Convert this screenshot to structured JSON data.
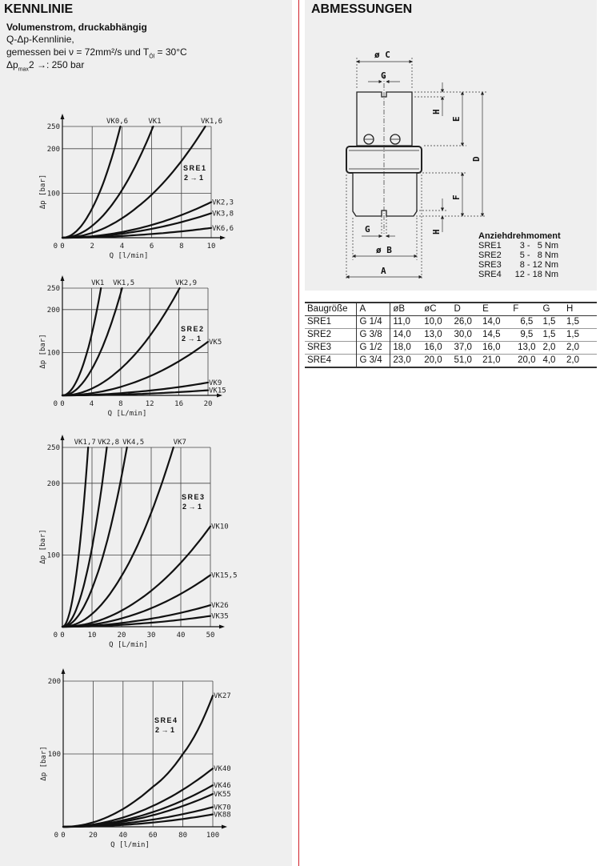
{
  "left": {
    "heading": "KENNLINIE",
    "subtitle": "Volumenstrom, druckabhängig",
    "line1": "Q-Δp-Kennlinie,",
    "line2_pre": "gemessen bei ν = 72mm²/s und T",
    "line2_sub": "Öl",
    "line2_post": " = 30°C",
    "line3_pre": "Δp",
    "line3_sub": "max",
    "line3_post": "2  →: 250 bar"
  },
  "right": {
    "heading": "ABMESSUNGEN",
    "drawing_labels": {
      "c": "ø C",
      "g_top": "G",
      "h_top": "H",
      "e": "E",
      "d": "D",
      "f": "F",
      "h_bottom": "H",
      "g_bottom": "G",
      "b": "ø B",
      "a": "A"
    },
    "torque": {
      "title": "Anziehdrehmoment",
      "rows": [
        {
          "size": "SRE1",
          "value": "3 -   5 Nm"
        },
        {
          "size": "SRE2",
          "value": "5 -   8 Nm"
        },
        {
          "size": "SRE3",
          "value": "8 - 12 Nm"
        },
        {
          "size": "SRE4",
          "value": "12 - 18 Nm"
        }
      ]
    },
    "table": {
      "headers": [
        "Baugröße",
        "A",
        "øB",
        "øC",
        "D",
        "E",
        "F",
        "G",
        "H"
      ],
      "rows": [
        [
          "SRE1",
          "G 1/4",
          "11,0",
          "10,0",
          "26,0",
          "14,0",
          "6,5",
          "1,5",
          "1,5"
        ],
        [
          "SRE2",
          "G 3/8",
          "14,0",
          "13,0",
          "30,0",
          "14,5",
          "9,5",
          "1,5",
          "1,5"
        ],
        [
          "SRE3",
          "G 1/2",
          "18,0",
          "16,0",
          "37,0",
          "16,0",
          "13,0",
          "2,0",
          "2,0"
        ],
        [
          "SRE4",
          "G 3/4",
          "23,0",
          "20,0",
          "51,0",
          "21,0",
          "20,0",
          "4,0",
          "2,0"
        ]
      ]
    }
  },
  "chart_data": [
    {
      "type": "line",
      "title": "SRE1",
      "flow": "2 → 1",
      "xlabel": "Q [l/min]",
      "ylabel": "Δp [bar]",
      "xlim": [
        0,
        10
      ],
      "ylim": [
        0,
        250
      ],
      "xticks": [
        0,
        2,
        4,
        6,
        8,
        10
      ],
      "yticks": [
        100,
        200,
        250
      ],
      "grid": true,
      "series": [
        {
          "name": "VK0,6",
          "points": [
            [
              0,
              0
            ],
            [
              2,
              66
            ],
            [
              3.9,
              250
            ]
          ]
        },
        {
          "name": "VK1",
          "points": [
            [
              0,
              0
            ],
            [
              3,
              60
            ],
            [
              6.1,
              250
            ]
          ]
        },
        {
          "name": "VK1,6",
          "points": [
            [
              0,
              0
            ],
            [
              5,
              68
            ],
            [
              9.6,
              250
            ]
          ]
        },
        {
          "name": "VK2,3",
          "points": [
            [
              0,
              0
            ],
            [
              5,
              20
            ],
            [
              10,
              80
            ]
          ]
        },
        {
          "name": "VK3,8",
          "points": [
            [
              0,
              0
            ],
            [
              5,
              14
            ],
            [
              10,
              55
            ]
          ]
        },
        {
          "name": "VK6,6",
          "points": [
            [
              0,
              0
            ],
            [
              5,
              6
            ],
            [
              10,
              22
            ]
          ]
        }
      ]
    },
    {
      "type": "line",
      "title": "SRE2",
      "flow": "2 → 1",
      "xlabel": "Q [L/min]",
      "ylabel": "Δp [bar]",
      "xlim": [
        0,
        20
      ],
      "ylim": [
        0,
        250
      ],
      "xticks": [
        0,
        4,
        8,
        12,
        16,
        20
      ],
      "yticks": [
        100,
        200,
        250
      ],
      "grid": true,
      "series": [
        {
          "name": "VK1",
          "points": [
            [
              0,
              0
            ],
            [
              2.7,
              64
            ],
            [
              5.3,
              250
            ]
          ]
        },
        {
          "name": "VK1,5",
          "points": [
            [
              0,
              0
            ],
            [
              4,
              60
            ],
            [
              8.2,
              250
            ]
          ]
        },
        {
          "name": "VK2,9",
          "points": [
            [
              0,
              0
            ],
            [
              8,
              62
            ],
            [
              16.1,
              250
            ]
          ]
        },
        {
          "name": "VK5",
          "points": [
            [
              0,
              0
            ],
            [
              10,
              31
            ],
            [
              20,
              125
            ]
          ]
        },
        {
          "name": "VK9",
          "points": [
            [
              0,
              0
            ],
            [
              10,
              8
            ],
            [
              20,
              30
            ]
          ]
        },
        {
          "name": "VK15",
          "points": [
            [
              0,
              0
            ],
            [
              10,
              3
            ],
            [
              20,
              12
            ]
          ]
        }
      ]
    },
    {
      "type": "line",
      "title": "SRE3",
      "flow": "2 → 1",
      "xlabel": "Q [L/min]",
      "ylabel": "Δp [bar]",
      "xlim": [
        0,
        50
      ],
      "ylim": [
        0,
        250
      ],
      "xticks": [
        0,
        10,
        20,
        30,
        40,
        50
      ],
      "yticks": [
        100,
        200,
        250
      ],
      "grid": true,
      "series": [
        {
          "name": "VK1,7",
          "points": [
            [
              0,
              0
            ],
            [
              4.4,
              64
            ],
            [
              8.7,
              250
            ]
          ]
        },
        {
          "name": "VK2,8",
          "points": [
            [
              0,
              0
            ],
            [
              7.5,
              62
            ],
            [
              15,
              250
            ]
          ]
        },
        {
          "name": "VK4,5",
          "points": [
            [
              0,
              0
            ],
            [
              11,
              64
            ],
            [
              21.8,
              250
            ]
          ]
        },
        {
          "name": "VK7",
          "points": [
            [
              0,
              0
            ],
            [
              19,
              64
            ],
            [
              37.5,
              250
            ]
          ]
        },
        {
          "name": "VK10",
          "points": [
            [
              0,
              0
            ],
            [
              25,
              35
            ],
            [
              50,
              140
            ]
          ]
        },
        {
          "name": "VK15,5",
          "points": [
            [
              0,
              0
            ],
            [
              25,
              18
            ],
            [
              50,
              72
            ]
          ]
        },
        {
          "name": "VK26",
          "points": [
            [
              0,
              0
            ],
            [
              25,
              8
            ],
            [
              50,
              30
            ]
          ]
        },
        {
          "name": "VK35",
          "points": [
            [
              0,
              0
            ],
            [
              25,
              4
            ],
            [
              50,
              15
            ]
          ]
        }
      ]
    },
    {
      "type": "line",
      "title": "SRE4",
      "flow": "2 → 1",
      "xlabel": "Q [l/min]",
      "ylabel": "Δp [bar]",
      "xlim": [
        0,
        100
      ],
      "ylim": [
        0,
        200
      ],
      "xticks": [
        0,
        20,
        40,
        60,
        80,
        100
      ],
      "yticks": [
        100,
        200
      ],
      "grid": true,
      "series": [
        {
          "name": "VK27",
          "points": [
            [
              0,
              0
            ],
            [
              60,
              55
            ],
            [
              80,
              100
            ],
            [
              100,
              180
            ]
          ]
        },
        {
          "name": "VK40",
          "points": [
            [
              0,
              0
            ],
            [
              50,
              20
            ],
            [
              100,
              80
            ]
          ]
        },
        {
          "name": "VK46",
          "points": [
            [
              0,
              0
            ],
            [
              50,
              14
            ],
            [
              100,
              57
            ]
          ]
        },
        {
          "name": "VK55",
          "points": [
            [
              0,
              0
            ],
            [
              50,
              11
            ],
            [
              100,
              45
            ]
          ]
        },
        {
          "name": "VK70",
          "points": [
            [
              0,
              0
            ],
            [
              50,
              7
            ],
            [
              100,
              27
            ]
          ]
        },
        {
          "name": "VK88",
          "points": [
            [
              0,
              0
            ],
            [
              50,
              4
            ],
            [
              100,
              17
            ]
          ]
        }
      ]
    }
  ]
}
